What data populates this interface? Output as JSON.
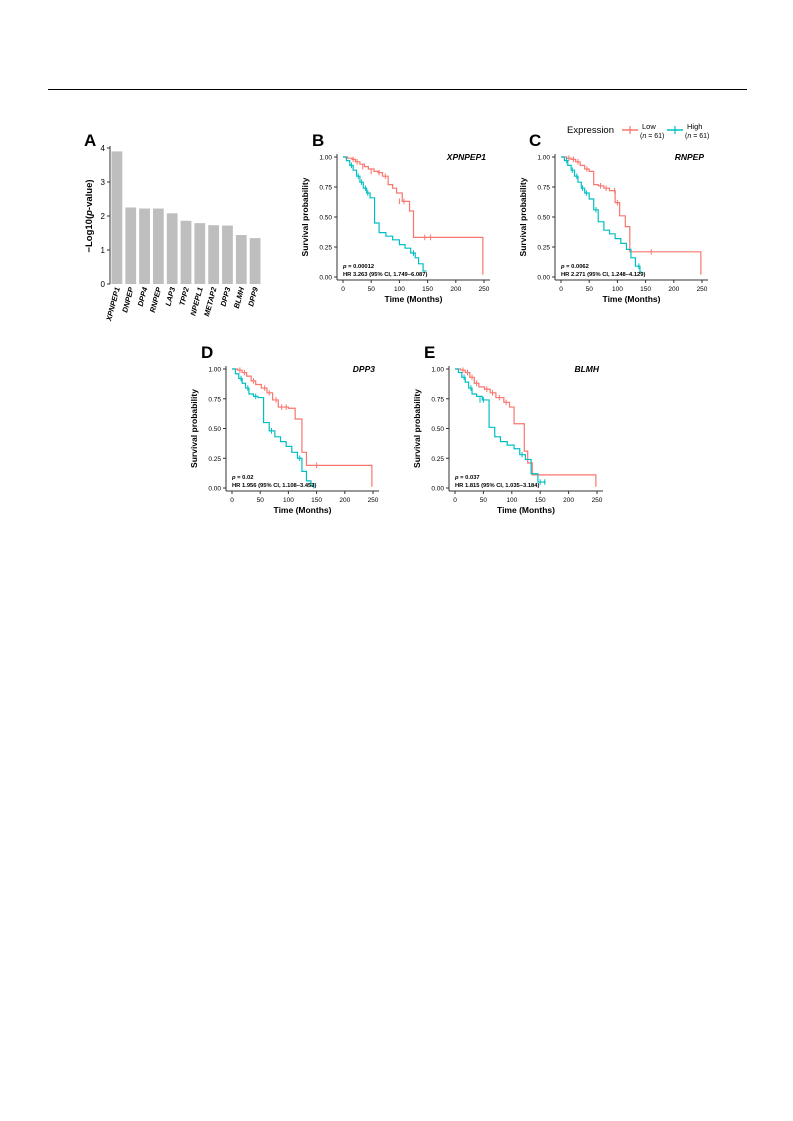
{
  "colors": {
    "low": "#F8766D",
    "high": "#00BFC4",
    "bar": "#BEBEBE",
    "axis": "#333333"
  },
  "legend": {
    "title": "Expression",
    "items": [
      {
        "key": "low",
        "label": "Low",
        "sublabel_n": "n",
        "sublabel_rest": " = 61)"
      },
      {
        "key": "high",
        "label": "High",
        "sublabel_n": "n",
        "sublabel_rest": " = 61)"
      }
    ]
  },
  "chart_data": [
    {
      "panel": "A",
      "type": "bar",
      "ylabel_pre": "−Log10(",
      "ylabel_italic": "p",
      "ylabel_post": "-value)",
      "ylim": [
        0,
        4
      ],
      "yticks": [
        "0",
        "1",
        "2",
        "3",
        "4"
      ],
      "categories": [
        "XPNPEP1",
        "DNPEP",
        "DPP4",
        "RNPEP",
        "LAP3",
        "TPP2",
        "NPEPL1",
        "METAP2",
        "DPP3",
        "BLMH",
        "DPP9"
      ],
      "values": [
        3.9,
        2.25,
        2.22,
        2.22,
        2.08,
        1.86,
        1.79,
        1.73,
        1.72,
        1.44,
        1.35
      ]
    },
    {
      "panel": "B",
      "type": "line",
      "gene": "XPNPEP1",
      "xlabel": "Time (Months)",
      "ylabel": "Survival probability",
      "xlim": [
        0,
        250
      ],
      "ylim": [
        0,
        1
      ],
      "xticks": [
        "0",
        "50",
        "100",
        "150",
        "200",
        "250"
      ],
      "yticks": [
        "0.00",
        "0.25",
        "0.50",
        "0.75",
        "1.00"
      ],
      "p_label": "p",
      "p_value": " = 0.00012",
      "hr_text": "HR 3.263 (95% CI, 1.749–6.087)",
      "series": [
        {
          "name": "Low",
          "x": [
            0,
            8,
            16,
            22,
            30,
            38,
            45,
            55,
            62,
            70,
            80,
            88,
            95,
            105,
            118,
            125,
            140,
            248,
            248
          ],
          "y": [
            1,
            0.99,
            0.98,
            0.96,
            0.94,
            0.92,
            0.9,
            0.88,
            0.87,
            0.84,
            0.77,
            0.74,
            0.7,
            0.63,
            0.55,
            0.33,
            0.33,
            0.33,
            0.02
          ],
          "censor_x": [
            18,
            25,
            35,
            50,
            64,
            75,
            100,
            108,
            145,
            155
          ],
          "censor_y": [
            0.98,
            0.96,
            0.92,
            0.88,
            0.87,
            0.84,
            0.63,
            0.63,
            0.33,
            0.33
          ]
        },
        {
          "name": "High",
          "x": [
            0,
            6,
            12,
            18,
            24,
            30,
            36,
            42,
            48,
            56,
            64,
            76,
            88,
            100,
            110,
            120,
            128,
            134,
            142,
            148
          ],
          "y": [
            1,
            0.97,
            0.93,
            0.89,
            0.84,
            0.79,
            0.74,
            0.7,
            0.66,
            0.45,
            0.37,
            0.34,
            0.31,
            0.27,
            0.24,
            0.2,
            0.16,
            0.11,
            0.05,
            0.05
          ],
          "censor_x": [
            15,
            27,
            33,
            40,
            44,
            125
          ],
          "censor_y": [
            0.93,
            0.84,
            0.79,
            0.74,
            0.7,
            0.2
          ]
        }
      ]
    },
    {
      "panel": "C",
      "type": "line",
      "gene": "RNPEP",
      "xlabel": "Time (Months)",
      "ylabel": "Survival probability",
      "xlim": [
        0,
        250
      ],
      "ylim": [
        0,
        1
      ],
      "xticks": [
        "0",
        "50",
        "100",
        "150",
        "200",
        "250"
      ],
      "yticks": [
        "0.00",
        "0.25",
        "0.50",
        "0.75",
        "1.00"
      ],
      "p_label": "p",
      "p_value": " = 0.0062",
      "hr_text": "HR 2.271 (95% CI, 1.248–4.129)",
      "series": [
        {
          "name": "Low",
          "x": [
            0,
            10,
            18,
            26,
            34,
            42,
            50,
            58,
            66,
            76,
            86,
            96,
            104,
            114,
            122,
            128,
            248,
            248
          ],
          "y": [
            1,
            0.99,
            0.98,
            0.96,
            0.93,
            0.9,
            0.88,
            0.77,
            0.76,
            0.74,
            0.72,
            0.62,
            0.51,
            0.42,
            0.21,
            0.21,
            0.21,
            0.02
          ],
          "censor_x": [
            14,
            22,
            30,
            46,
            70,
            80,
            95,
            100,
            160
          ],
          "censor_y": [
            0.99,
            0.98,
            0.96,
            0.9,
            0.76,
            0.74,
            0.72,
            0.62,
            0.21
          ]
        },
        {
          "name": "High",
          "x": [
            0,
            6,
            12,
            18,
            24,
            30,
            36,
            42,
            50,
            58,
            66,
            76,
            86,
            96,
            106,
            116,
            124,
            132,
            140,
            144
          ],
          "y": [
            1,
            0.97,
            0.93,
            0.89,
            0.84,
            0.79,
            0.74,
            0.7,
            0.65,
            0.56,
            0.46,
            0.39,
            0.36,
            0.32,
            0.28,
            0.23,
            0.16,
            0.09,
            0.04,
            0.04
          ],
          "censor_x": [
            10,
            20,
            28,
            38,
            45,
            62,
            138
          ],
          "censor_y": [
            0.97,
            0.89,
            0.84,
            0.74,
            0.7,
            0.56,
            0.09
          ]
        }
      ]
    },
    {
      "panel": "D",
      "type": "line",
      "gene": "DPP3",
      "xlabel": "Time (Months)",
      "ylabel": "Survival probability",
      "xlim": [
        0,
        250
      ],
      "ylim": [
        0,
        1
      ],
      "xticks": [
        "0",
        "50",
        "100",
        "150",
        "200",
        "250"
      ],
      "yticks": [
        "0.00",
        "0.25",
        "0.50",
        "0.75",
        "1.00"
      ],
      "p_label": "p",
      "p_value": " = 0.02",
      "hr_text": "HR 1.956 (95% CI, 1.108–3.453)",
      "series": [
        {
          "name": "Low",
          "x": [
            0,
            10,
            18,
            26,
            34,
            42,
            52,
            62,
            72,
            82,
            100,
            112,
            124,
            132,
            248,
            248
          ],
          "y": [
            1,
            0.99,
            0.97,
            0.94,
            0.9,
            0.87,
            0.84,
            0.8,
            0.74,
            0.68,
            0.67,
            0.58,
            0.3,
            0.19,
            0.19,
            0.01
          ],
          "censor_x": [
            14,
            22,
            38,
            58,
            66,
            78,
            88,
            96,
            150
          ],
          "censor_y": [
            0.99,
            0.97,
            0.9,
            0.84,
            0.8,
            0.74,
            0.68,
            0.68,
            0.19
          ]
        },
        {
          "name": "High",
          "x": [
            0,
            6,
            12,
            18,
            24,
            30,
            38,
            46,
            56,
            66,
            76,
            86,
            96,
            106,
            116,
            124,
            132,
            140,
            146
          ],
          "y": [
            1,
            0.96,
            0.92,
            0.88,
            0.84,
            0.79,
            0.77,
            0.76,
            0.55,
            0.48,
            0.43,
            0.39,
            0.35,
            0.3,
            0.25,
            0.14,
            0.06,
            0.02,
            0.02
          ],
          "censor_x": [
            16,
            28,
            42,
            70,
            120,
            145
          ],
          "censor_y": [
            0.92,
            0.84,
            0.77,
            0.48,
            0.25,
            0.02
          ]
        }
      ]
    },
    {
      "panel": "E",
      "type": "line",
      "gene": "BLMH",
      "xlabel": "Time (Months)",
      "ylabel": "Survival probability",
      "xlim": [
        0,
        250
      ],
      "ylim": [
        0,
        1
      ],
      "xticks": [
        "0",
        "50",
        "100",
        "150",
        "200",
        "250"
      ],
      "yticks": [
        "0.00",
        "0.25",
        "0.50",
        "0.75",
        "1.00"
      ],
      "p_label": "p",
      "p_value": " = 0.037",
      "hr_text": "HR 1.815 (95% CI, 1.035–3.184)",
      "series": [
        {
          "name": "Low",
          "x": [
            0,
            10,
            18,
            26,
            34,
            42,
            52,
            62,
            72,
            86,
            96,
            104,
            122,
            128,
            136,
            248,
            248
          ],
          "y": [
            1,
            0.99,
            0.97,
            0.93,
            0.88,
            0.85,
            0.83,
            0.8,
            0.76,
            0.72,
            0.68,
            0.54,
            0.31,
            0.21,
            0.11,
            0.11,
            0.01
          ],
          "censor_x": [
            14,
            22,
            30,
            38,
            56,
            66,
            78,
            90
          ],
          "censor_y": [
            0.99,
            0.97,
            0.93,
            0.88,
            0.83,
            0.8,
            0.76,
            0.72
          ]
        },
        {
          "name": "High",
          "x": [
            0,
            6,
            12,
            18,
            24,
            30,
            38,
            48,
            60,
            70,
            80,
            92,
            104,
            114,
            124,
            134,
            146,
            160
          ],
          "y": [
            1,
            0.97,
            0.93,
            0.89,
            0.84,
            0.79,
            0.77,
            0.74,
            0.51,
            0.43,
            0.39,
            0.36,
            0.33,
            0.28,
            0.24,
            0.12,
            0.05,
            0.05
          ],
          "censor_x": [
            16,
            28,
            44,
            50,
            118,
            150,
            158
          ],
          "censor_y": [
            0.93,
            0.84,
            0.74,
            0.74,
            0.28,
            0.05,
            0.05
          ]
        }
      ]
    }
  ]
}
